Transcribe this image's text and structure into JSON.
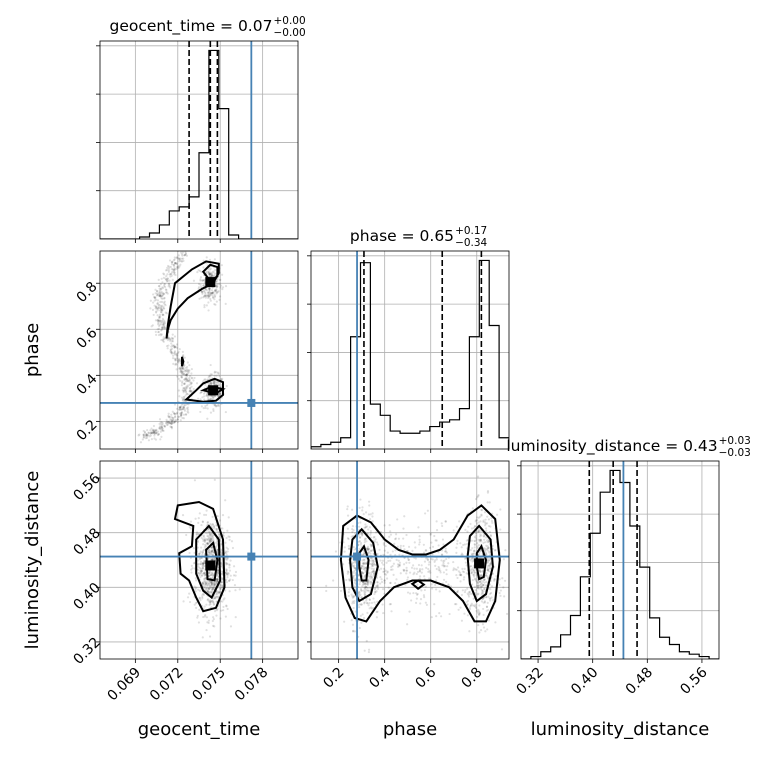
{
  "chart_data": {
    "type": "corner",
    "parameters": [
      "geocent_time",
      "phase",
      "luminosity_distance"
    ],
    "axis_labels": {
      "x": [
        "geocent_time",
        "phase",
        "luminosity_distance"
      ],
      "y": [
        "phase",
        "luminosity_distance"
      ]
    },
    "ranges": {
      "geocent_time": [
        0.0665,
        0.0805
      ],
      "phase": [
        0.08,
        0.94
      ],
      "luminosity_distance": [
        0.295,
        0.585
      ]
    },
    "ticks": {
      "geocent_time": [
        0.069,
        0.072,
        0.075,
        0.078
      ],
      "phase": [
        0.2,
        0.4,
        0.6,
        0.8
      ],
      "phase_y": [
        0.2,
        0.4,
        0.6,
        0.8
      ],
      "luminosity_distance": [
        0.32,
        0.4,
        0.48,
        0.56
      ]
    },
    "tick_labels": {
      "geocent_time": [
        "0.069",
        "0.072",
        "0.075",
        "0.078"
      ],
      "phase": [
        "0.2",
        "0.4",
        "0.6",
        "0.8"
      ],
      "luminosity_distance": [
        "0.32",
        "0.40",
        "0.48",
        "0.56"
      ]
    },
    "titles": [
      {
        "param": "geocent_time",
        "label": "geocent_time = 0.07",
        "sup": "+0.00",
        "sub": "−0.00"
      },
      {
        "param": "phase",
        "label": "phase = 0.65",
        "sup": "+0.17",
        "sub": "−0.34"
      },
      {
        "param": "luminosity_distance",
        "label": "luminosity_distance = 0.43",
        "sup": "+0.03",
        "sub": "−0.03"
      }
    ],
    "truths": {
      "geocent_time": 0.0772,
      "phase": 0.28,
      "luminosity_distance": 0.445
    },
    "quantiles": {
      "geocent_time": [
        0.0728,
        0.0743,
        0.0748
      ],
      "phase": [
        0.31,
        0.65,
        0.82
      ],
      "luminosity_distance": [
        0.395,
        0.43,
        0.465
      ]
    },
    "histograms": {
      "geocent_time": {
        "edges": [
          0.0665,
          0.0672,
          0.0679,
          0.0686,
          0.0693,
          0.07,
          0.0707,
          0.0714,
          0.0721,
          0.0728,
          0.0735,
          0.0742,
          0.0749,
          0.0756,
          0.0763,
          0.077,
          0.0777,
          0.0784,
          0.0791,
          0.0798,
          0.0805
        ],
        "counts": [
          0,
          0,
          0,
          0,
          1,
          3,
          7,
          14,
          16,
          21,
          43,
          94,
          65,
          2,
          0,
          0,
          0,
          0,
          0,
          0
        ]
      },
      "phase": {
        "edges": [
          0.08,
          0.123,
          0.166,
          0.209,
          0.252,
          0.295,
          0.338,
          0.381,
          0.424,
          0.467,
          0.51,
          0.553,
          0.596,
          0.639,
          0.682,
          0.725,
          0.768,
          0.811,
          0.854,
          0.897,
          0.94
        ],
        "counts": [
          1,
          2,
          3,
          5,
          50,
          83,
          20,
          15,
          8,
          7,
          7,
          8,
          10,
          12,
          13,
          18,
          50,
          84,
          55,
          5
        ]
      },
      "luminosity_distance": {
        "edges": [
          0.295,
          0.3095,
          0.324,
          0.3385,
          0.353,
          0.3675,
          0.382,
          0.3965,
          0.411,
          0.4255,
          0.44,
          0.4545,
          0.469,
          0.4835,
          0.498,
          0.5125,
          0.527,
          0.5415,
          0.556,
          0.5705,
          0.585
        ],
        "counts": [
          0,
          1,
          3,
          5,
          10,
          18,
          34,
          52,
          69,
          78,
          73,
          55,
          38,
          17,
          9,
          6,
          3,
          2,
          1,
          0
        ]
      }
    },
    "scatter_2d": [
      {
        "x": "geocent_time",
        "y": "phase",
        "arc_samples": [
          [
            0.0725,
            0.93
          ],
          [
            0.0718,
            0.88
          ],
          [
            0.0712,
            0.82
          ],
          [
            0.0708,
            0.76
          ],
          [
            0.0706,
            0.7
          ],
          [
            0.0707,
            0.64
          ],
          [
            0.0711,
            0.58
          ],
          [
            0.0716,
            0.52
          ],
          [
            0.0722,
            0.46
          ],
          [
            0.0724,
            0.42
          ],
          [
            0.0726,
            0.38
          ],
          [
            0.0727,
            0.33
          ],
          [
            0.0726,
            0.28
          ],
          [
            0.0722,
            0.24
          ],
          [
            0.0715,
            0.2
          ],
          [
            0.0705,
            0.16
          ],
          [
            0.0695,
            0.13
          ]
        ],
        "blobs": [
          {
            "x": 0.0743,
            "y": 0.8,
            "sx": 0.0004,
            "sy": 0.045,
            "n": 260
          },
          {
            "x": 0.0745,
            "y": 0.33,
            "sx": 0.0004,
            "sy": 0.035,
            "n": 260
          }
        ],
        "peaks": [
          [
            0.0743,
            0.805
          ],
          [
            0.0745,
            0.335
          ]
        ],
        "contours": [
          [
            [
              0.0718,
              0.8
            ],
            [
              0.073,
              0.86
            ],
            [
              0.074,
              0.895
            ],
            [
              0.0749,
              0.885
            ],
            [
              0.0749,
              0.845
            ],
            [
              0.0745,
              0.8
            ],
            [
              0.0737,
              0.775
            ],
            [
              0.0727,
              0.735
            ],
            [
              0.072,
              0.69
            ],
            [
              0.0715,
              0.64
            ],
            [
              0.0713,
              0.6
            ],
            [
              0.0712,
              0.56
            ],
            [
              0.0713,
              0.62
            ],
            [
              0.0715,
              0.7
            ]
          ],
          [
            [
              0.0738,
              0.85
            ],
            [
              0.0743,
              0.88
            ],
            [
              0.0748,
              0.87
            ],
            [
              0.0748,
              0.83
            ],
            [
              0.0743,
              0.81
            ]
          ],
          [
            [
              0.0726,
              0.295
            ],
            [
              0.0733,
              0.335
            ],
            [
              0.0738,
              0.365
            ],
            [
              0.0746,
              0.385
            ],
            [
              0.0752,
              0.37
            ],
            [
              0.0752,
              0.315
            ],
            [
              0.0747,
              0.29
            ],
            [
              0.0738,
              0.285
            ]
          ],
          [
            [
              0.0738,
              0.335
            ],
            [
              0.0744,
              0.35
            ],
            [
              0.0752,
              0.34
            ],
            [
              0.0747,
              0.322
            ]
          ],
          [
            [
              0.0723,
              0.48
            ],
            [
              0.0724,
              0.46
            ],
            [
              0.0723,
              0.44
            ]
          ]
        ]
      },
      {
        "x": "geocent_time",
        "y": "luminosity_distance",
        "blobs": [
          {
            "x": 0.0744,
            "y": 0.432,
            "sx": 0.0006,
            "sy": 0.035,
            "n": 900
          }
        ],
        "peaks": [
          [
            0.0743,
            0.432
          ]
        ],
        "contours": [
          [
            [
              0.072,
              0.52
            ],
            [
              0.0735,
              0.525
            ],
            [
              0.0745,
              0.515
            ],
            [
              0.0752,
              0.47
            ],
            [
              0.0753,
              0.4
            ],
            [
              0.0747,
              0.37
            ],
            [
              0.0738,
              0.365
            ],
            [
              0.0733,
              0.385
            ],
            [
              0.0728,
              0.41
            ],
            [
              0.0722,
              0.42
            ],
            [
              0.0721,
              0.45
            ],
            [
              0.073,
              0.46
            ],
            [
              0.0731,
              0.49
            ],
            [
              0.0718,
              0.5
            ]
          ],
          [
            [
              0.0733,
              0.47
            ],
            [
              0.0742,
              0.49
            ],
            [
              0.0749,
              0.47
            ],
            [
              0.075,
              0.41
            ],
            [
              0.0744,
              0.385
            ],
            [
              0.0738,
              0.395
            ],
            [
              0.0733,
              0.42
            ]
          ],
          [
            [
              0.074,
              0.455
            ],
            [
              0.0745,
              0.465
            ],
            [
              0.0748,
              0.44
            ],
            [
              0.0746,
              0.41
            ],
            [
              0.0741,
              0.412
            ]
          ]
        ]
      },
      {
        "x": "phase",
        "y": "luminosity_distance",
        "blobs": [
          {
            "x": 0.31,
            "y": 0.43,
            "sx": 0.035,
            "sy": 0.04,
            "n": 500
          },
          {
            "x": 0.82,
            "y": 0.43,
            "sx": 0.035,
            "sy": 0.04,
            "n": 500
          },
          {
            "x": 0.56,
            "y": 0.43,
            "sx": 0.15,
            "sy": 0.03,
            "n": 400
          }
        ],
        "peaks": [
          [
            0.81,
            0.435
          ]
        ],
        "contours": [
          [
            [
              0.22,
              0.49
            ],
            [
              0.28,
              0.505
            ],
            [
              0.34,
              0.495
            ],
            [
              0.4,
              0.47
            ],
            [
              0.46,
              0.455
            ],
            [
              0.52,
              0.448
            ],
            [
              0.58,
              0.448
            ],
            [
              0.64,
              0.455
            ],
            [
              0.7,
              0.47
            ],
            [
              0.76,
              0.505
            ],
            [
              0.82,
              0.52
            ],
            [
              0.88,
              0.5
            ],
            [
              0.9,
              0.44
            ],
            [
              0.88,
              0.38
            ],
            [
              0.84,
              0.35
            ],
            [
              0.79,
              0.35
            ],
            [
              0.74,
              0.38
            ],
            [
              0.68,
              0.4
            ],
            [
              0.6,
              0.41
            ],
            [
              0.52,
              0.41
            ],
            [
              0.44,
              0.4
            ],
            [
              0.38,
              0.38
            ],
            [
              0.32,
              0.35
            ],
            [
              0.27,
              0.355
            ],
            [
              0.23,
              0.385
            ],
            [
              0.21,
              0.44
            ]
          ],
          [
            [
              0.26,
              0.47
            ],
            [
              0.3,
              0.485
            ],
            [
              0.35,
              0.465
            ],
            [
              0.37,
              0.43
            ],
            [
              0.34,
              0.39
            ],
            [
              0.29,
              0.38
            ],
            [
              0.26,
              0.4
            ],
            [
              0.25,
              0.44
            ]
          ],
          [
            [
              0.77,
              0.475
            ],
            [
              0.81,
              0.49
            ],
            [
              0.86,
              0.47
            ],
            [
              0.87,
              0.43
            ],
            [
              0.84,
              0.39
            ],
            [
              0.8,
              0.38
            ],
            [
              0.77,
              0.405
            ],
            [
              0.76,
              0.445
            ]
          ],
          [
            [
              0.29,
              0.45
            ],
            [
              0.31,
              0.46
            ],
            [
              0.33,
              0.44
            ],
            [
              0.32,
              0.41
            ],
            [
              0.3,
              0.41
            ],
            [
              0.29,
              0.43
            ]
          ],
          [
            [
              0.8,
              0.45
            ],
            [
              0.82,
              0.46
            ],
            [
              0.84,
              0.44
            ],
            [
              0.83,
              0.415
            ],
            [
              0.81,
              0.412
            ],
            [
              0.8,
              0.43
            ]
          ],
          [
            [
              0.52,
              0.405
            ],
            [
              0.545,
              0.41
            ],
            [
              0.57,
              0.404
            ],
            [
              0.545,
              0.398
            ]
          ]
        ]
      }
    ]
  }
}
